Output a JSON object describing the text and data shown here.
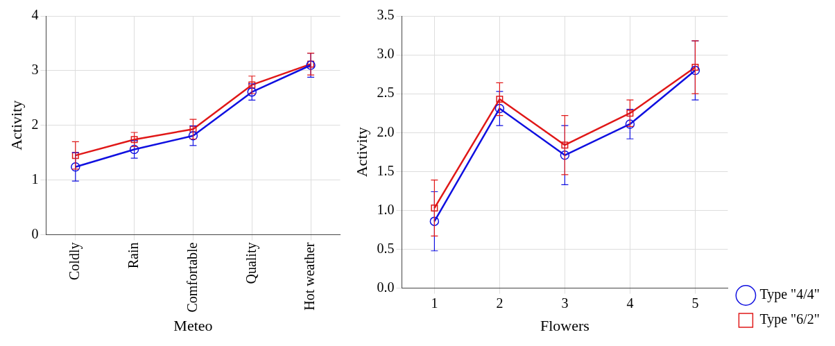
{
  "chart_data": [
    {
      "type": "line",
      "xlabel": "Meteo",
      "ylabel": "Activity",
      "categories": [
        "Coldly",
        "Rain",
        "Comfortable",
        "Quality",
        "Hot weather"
      ],
      "ylim": [
        0,
        4
      ],
      "yticks": [
        0,
        1,
        2,
        3,
        4
      ],
      "grid": true,
      "line_style": "solid",
      "legend": false,
      "series": [
        {
          "color": "#1010e0",
          "marker": "circle",
          "values": [
            1.24,
            1.56,
            1.81,
            2.61,
            3.1
          ],
          "errors": [
            0.26,
            0.16,
            0.18,
            0.15,
            0.22
          ]
        },
        {
          "color": "#e01818",
          "marker": "square",
          "values": [
            1.45,
            1.74,
            1.93,
            2.74,
            3.12
          ],
          "errors": [
            0.25,
            0.13,
            0.18,
            0.16,
            0.2
          ]
        }
      ]
    },
    {
      "type": "line",
      "xlabel": "Flowers",
      "ylabel": "Activity",
      "categories": [
        "1",
        "2",
        "3",
        "4",
        "5"
      ],
      "ylim": [
        0,
        3.5
      ],
      "yticks": [
        {
          "value": 0,
          "label": "0.0"
        },
        {
          "value": 0.5,
          "label": "0.5"
        },
        {
          "value": 1,
          "label": "1.0"
        },
        {
          "value": 1.5,
          "label": "1.5"
        },
        {
          "value": 2,
          "label": "2.0"
        },
        {
          "value": 2.5,
          "label": "2.5"
        },
        {
          "value": 3,
          "label": "3.0"
        },
        {
          "value": 3.5,
          "label": "3.5"
        }
      ],
      "grid": true,
      "line_style": "solid",
      "legend": "bottom right",
      "series": [
        {
          "name": "Type \"4/4\"",
          "color": "#1010e0",
          "marker": "circle",
          "values": [
            0.86,
            2.31,
            1.71,
            2.11,
            2.8
          ],
          "errors": [
            0.38,
            0.22,
            0.38,
            0.19,
            0.38
          ]
        },
        {
          "name": "Type \"6/2\"",
          "color": "#e01818",
          "marker": "square",
          "values": [
            1.03,
            2.43,
            1.84,
            2.25,
            2.84
          ],
          "errors": [
            0.36,
            0.21,
            0.38,
            0.17,
            0.34
          ]
        }
      ]
    }
  ]
}
